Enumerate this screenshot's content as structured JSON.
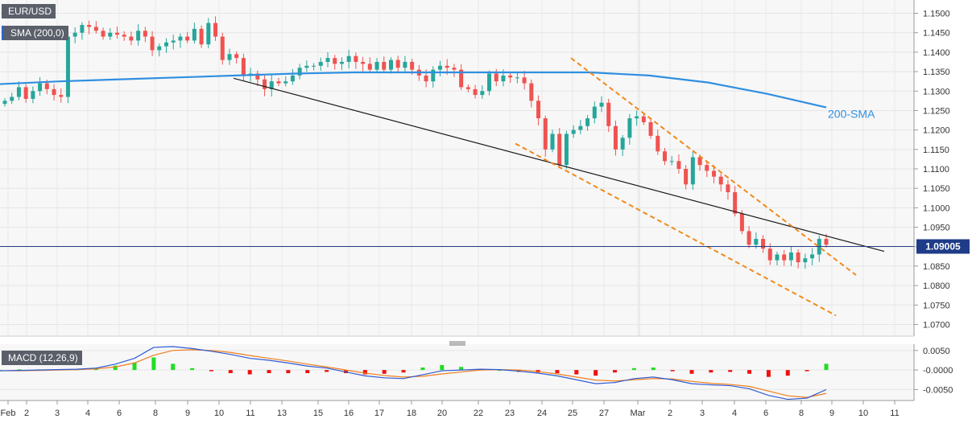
{
  "symbol": "EUR/USD",
  "indicator_label": "SMA (200,0)",
  "macd_label": "MACD (12,26,9)",
  "last_price_label": "1.09005",
  "sma_label": "200-SMA",
  "colors": {
    "up": "#26a69a",
    "down": "#ef5350",
    "sma": "#2f8fe0",
    "trend": "#1a1a1a",
    "channel": "#f08a1c",
    "price_line": "#1f3c88",
    "macd_line": "#2e5bd6",
    "signal_line": "#f07d1a",
    "hist_pos": "#22dd22",
    "hist_neg": "#ee1111"
  },
  "x_ticks": [
    "Feb",
    "2",
    "3",
    "4",
    "6",
    "8",
    "9",
    "10",
    "11",
    "13",
    "15",
    "16",
    "17",
    "18",
    "20",
    "22",
    "23",
    "24",
    "25",
    "27",
    "Mar",
    "2",
    "3",
    "4",
    "6",
    "8",
    "9",
    "10",
    "11"
  ],
  "chart_data": [
    {
      "type": "candlestick",
      "ylim": [
        1.067,
        1.153
      ],
      "y_ticks": [
        "1.1500",
        "1.1450",
        "1.1400",
        "1.1350",
        "1.1300",
        "1.1250",
        "1.1200",
        "1.1150",
        "1.1100",
        "1.1050",
        "1.1000",
        "1.0950",
        "1.0900",
        "1.0850",
        "1.0800",
        "1.0750",
        "1.0700"
      ],
      "last_price": 1.09005,
      "series": [
        {
          "name": "200-SMA",
          "values": [
            1.1318,
            1.1325,
            1.133,
            1.1335,
            1.134,
            1.1345,
            1.1348,
            1.1348,
            1.1348,
            1.1348,
            1.1348,
            1.134,
            1.1322,
            1.1293,
            1.1258
          ]
        },
        {
          "values": [
            1.1275,
            1.1285,
            1.131,
            1.128,
            1.13,
            1.132,
            1.1305,
            1.129,
            1.1285,
            1.144,
            1.145,
            1.147,
            1.1465,
            1.1455,
            1.144,
            1.145,
            1.1445,
            1.144,
            1.143,
            1.1455,
            1.144,
            1.1405,
            1.1415,
            1.1425,
            1.143,
            1.144,
            1.143,
            1.146,
            1.142,
            1.1475,
            1.144,
            1.138,
            1.1395,
            1.1385,
            1.134,
            1.1345,
            1.133,
            1.1305,
            1.1325,
            1.132,
            1.1325,
            1.134,
            1.136,
            1.1365,
            1.1365,
            1.1375,
            1.1385,
            1.137,
            1.1375,
            1.139,
            1.1375,
            1.137,
            1.1355,
            1.1375,
            1.1355,
            1.138,
            1.136,
            1.1375,
            1.1355,
            1.134,
            1.1325,
            1.1355,
            1.1365,
            1.136,
            1.1355,
            1.131,
            1.1305,
            1.129,
            1.13,
            1.1345,
            1.1325,
            1.134,
            1.1335,
            1.1335,
            1.132,
            1.1275,
            1.123,
            1.115,
            1.119,
            1.111,
            1.119,
            1.12,
            1.121,
            1.123,
            1.126,
            1.127,
            1.121,
            1.115,
            1.118,
            1.123,
            1.1235,
            1.122,
            1.1185,
            1.1145,
            1.112,
            1.112,
            1.11,
            1.106,
            1.113,
            1.111,
            1.1095,
            1.108,
            1.106,
            1.104,
            1.0985,
            1.094,
            1.0905,
            1.092,
            1.0895,
            1.0865,
            1.088,
            1.0865,
            1.0885,
            1.086,
            1.087,
            1.088,
            1.092,
            1.0905
          ]
        }
      ]
    },
    {
      "type": "macd",
      "title": "MACD (12,26,9)",
      "ylim": [
        -0.0078,
        0.0062
      ],
      "y_ticks": [
        "0.0050",
        "-0.0000",
        "-0.0050"
      ],
      "series": [
        {
          "name": "MACD",
          "values": [
            -0.0002,
            -0.0001,
            0.0,
            0.0001,
            0.0002,
            0.0005,
            0.0015,
            0.003,
            0.0058,
            0.006,
            0.0055,
            0.0048,
            0.004,
            0.003,
            0.0025,
            0.0018,
            0.001,
            0.0005,
            -0.0005,
            -0.0015,
            -0.002,
            -0.0022,
            -0.0012,
            -0.0002,
            0.0,
            0.0002,
            0.0001,
            -0.0003,
            -0.0008,
            -0.0015,
            -0.0025,
            -0.0035,
            -0.0032,
            -0.0022,
            -0.0018,
            -0.0025,
            -0.0035,
            -0.0038,
            -0.004,
            -0.0048,
            -0.0065,
            -0.0075,
            -0.0072,
            -0.005
          ]
        },
        {
          "name": "Signal",
          "values": [
            -0.0002,
            -0.0002,
            -0.0001,
            0.0,
            0.0001,
            0.0003,
            0.0008,
            0.0018,
            0.0038,
            0.005,
            0.0052,
            0.005,
            0.0045,
            0.0037,
            0.003,
            0.0023,
            0.0015,
            0.0008,
            0.0,
            -0.0008,
            -0.0014,
            -0.0018,
            -0.0016,
            -0.001,
            -0.0005,
            0.0,
            0.0001,
            0.0,
            -0.0004,
            -0.001,
            -0.0018,
            -0.0026,
            -0.0028,
            -0.0025,
            -0.0022,
            -0.0023,
            -0.0029,
            -0.0034,
            -0.0037,
            -0.0042,
            -0.0054,
            -0.0066,
            -0.007,
            -0.006
          ]
        }
      ]
    }
  ]
}
